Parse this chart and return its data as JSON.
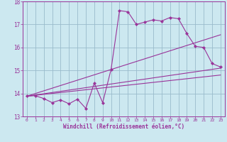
{
  "xlabel": "Windchill (Refroidissement éolien,°C)",
  "bg_color": "#cce8f0",
  "line_color": "#993399",
  "grid_color": "#99bbcc",
  "xlim": [
    -0.5,
    23.5
  ],
  "ylim": [
    13,
    18
  ],
  "yticks": [
    13,
    14,
    15,
    16,
    17,
    18
  ],
  "xticks": [
    0,
    1,
    2,
    3,
    4,
    5,
    6,
    7,
    8,
    9,
    10,
    11,
    12,
    13,
    14,
    15,
    16,
    17,
    18,
    19,
    20,
    21,
    22,
    23
  ],
  "main_x": [
    0,
    1,
    2,
    3,
    4,
    5,
    6,
    7,
    8,
    9,
    10,
    11,
    12,
    13,
    14,
    15,
    16,
    17,
    18,
    19,
    20,
    21,
    22,
    23
  ],
  "main_y": [
    13.9,
    13.9,
    13.78,
    13.6,
    13.72,
    13.55,
    13.75,
    13.35,
    14.45,
    13.6,
    15.05,
    17.6,
    17.55,
    17.0,
    17.1,
    17.2,
    17.15,
    17.3,
    17.25,
    16.6,
    16.05,
    16.0,
    15.3,
    15.15
  ],
  "trend1_x": [
    0,
    23
  ],
  "trend1_y": [
    13.88,
    15.1
  ],
  "trend2_x": [
    0,
    23
  ],
  "trend2_y": [
    13.88,
    16.55
  ],
  "trend3_x": [
    0,
    23
  ],
  "trend3_y": [
    13.88,
    14.8
  ]
}
